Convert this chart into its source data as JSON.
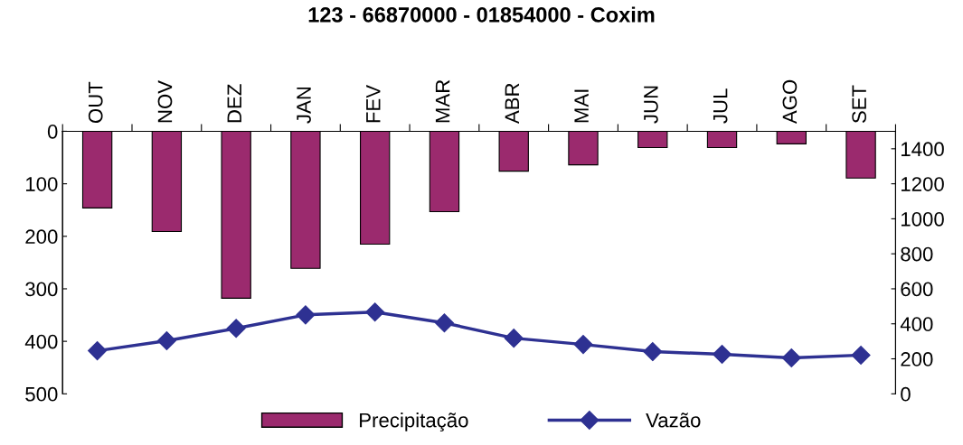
{
  "chart_data": {
    "type": "bar",
    "title": "123 - 66870000 - 01854000 - Coxim",
    "categories": [
      "OUT",
      "NOV",
      "DEZ",
      "JAN",
      "FEV",
      "MAR",
      "ABR",
      "MAI",
      "JUN",
      "JUL",
      "AGO",
      "SET"
    ],
    "series": [
      {
        "name": "Precipitação",
        "color": "#9b2a6e",
        "values": [
          146,
          191,
          318,
          261,
          215,
          153,
          76,
          64,
          31,
          31,
          24,
          89
        ]
      },
      {
        "name": "Vazão",
        "type": "line",
        "axis": "y2",
        "color": "#2e3192",
        "marker": "diamond",
        "values": [
          246,
          303,
          374,
          451,
          467,
          405,
          318,
          282,
          241,
          226,
          205,
          221
        ]
      }
    ],
    "ylim": [
      500,
      0
    ],
    "yticks": [
      0,
      100,
      200,
      300,
      400,
      500
    ],
    "y2lim": [
      0,
      1500
    ],
    "y2ticks": [
      0,
      200,
      400,
      600,
      800,
      1000,
      1200,
      1400
    ],
    "grid": false,
    "legend": "bottom"
  }
}
